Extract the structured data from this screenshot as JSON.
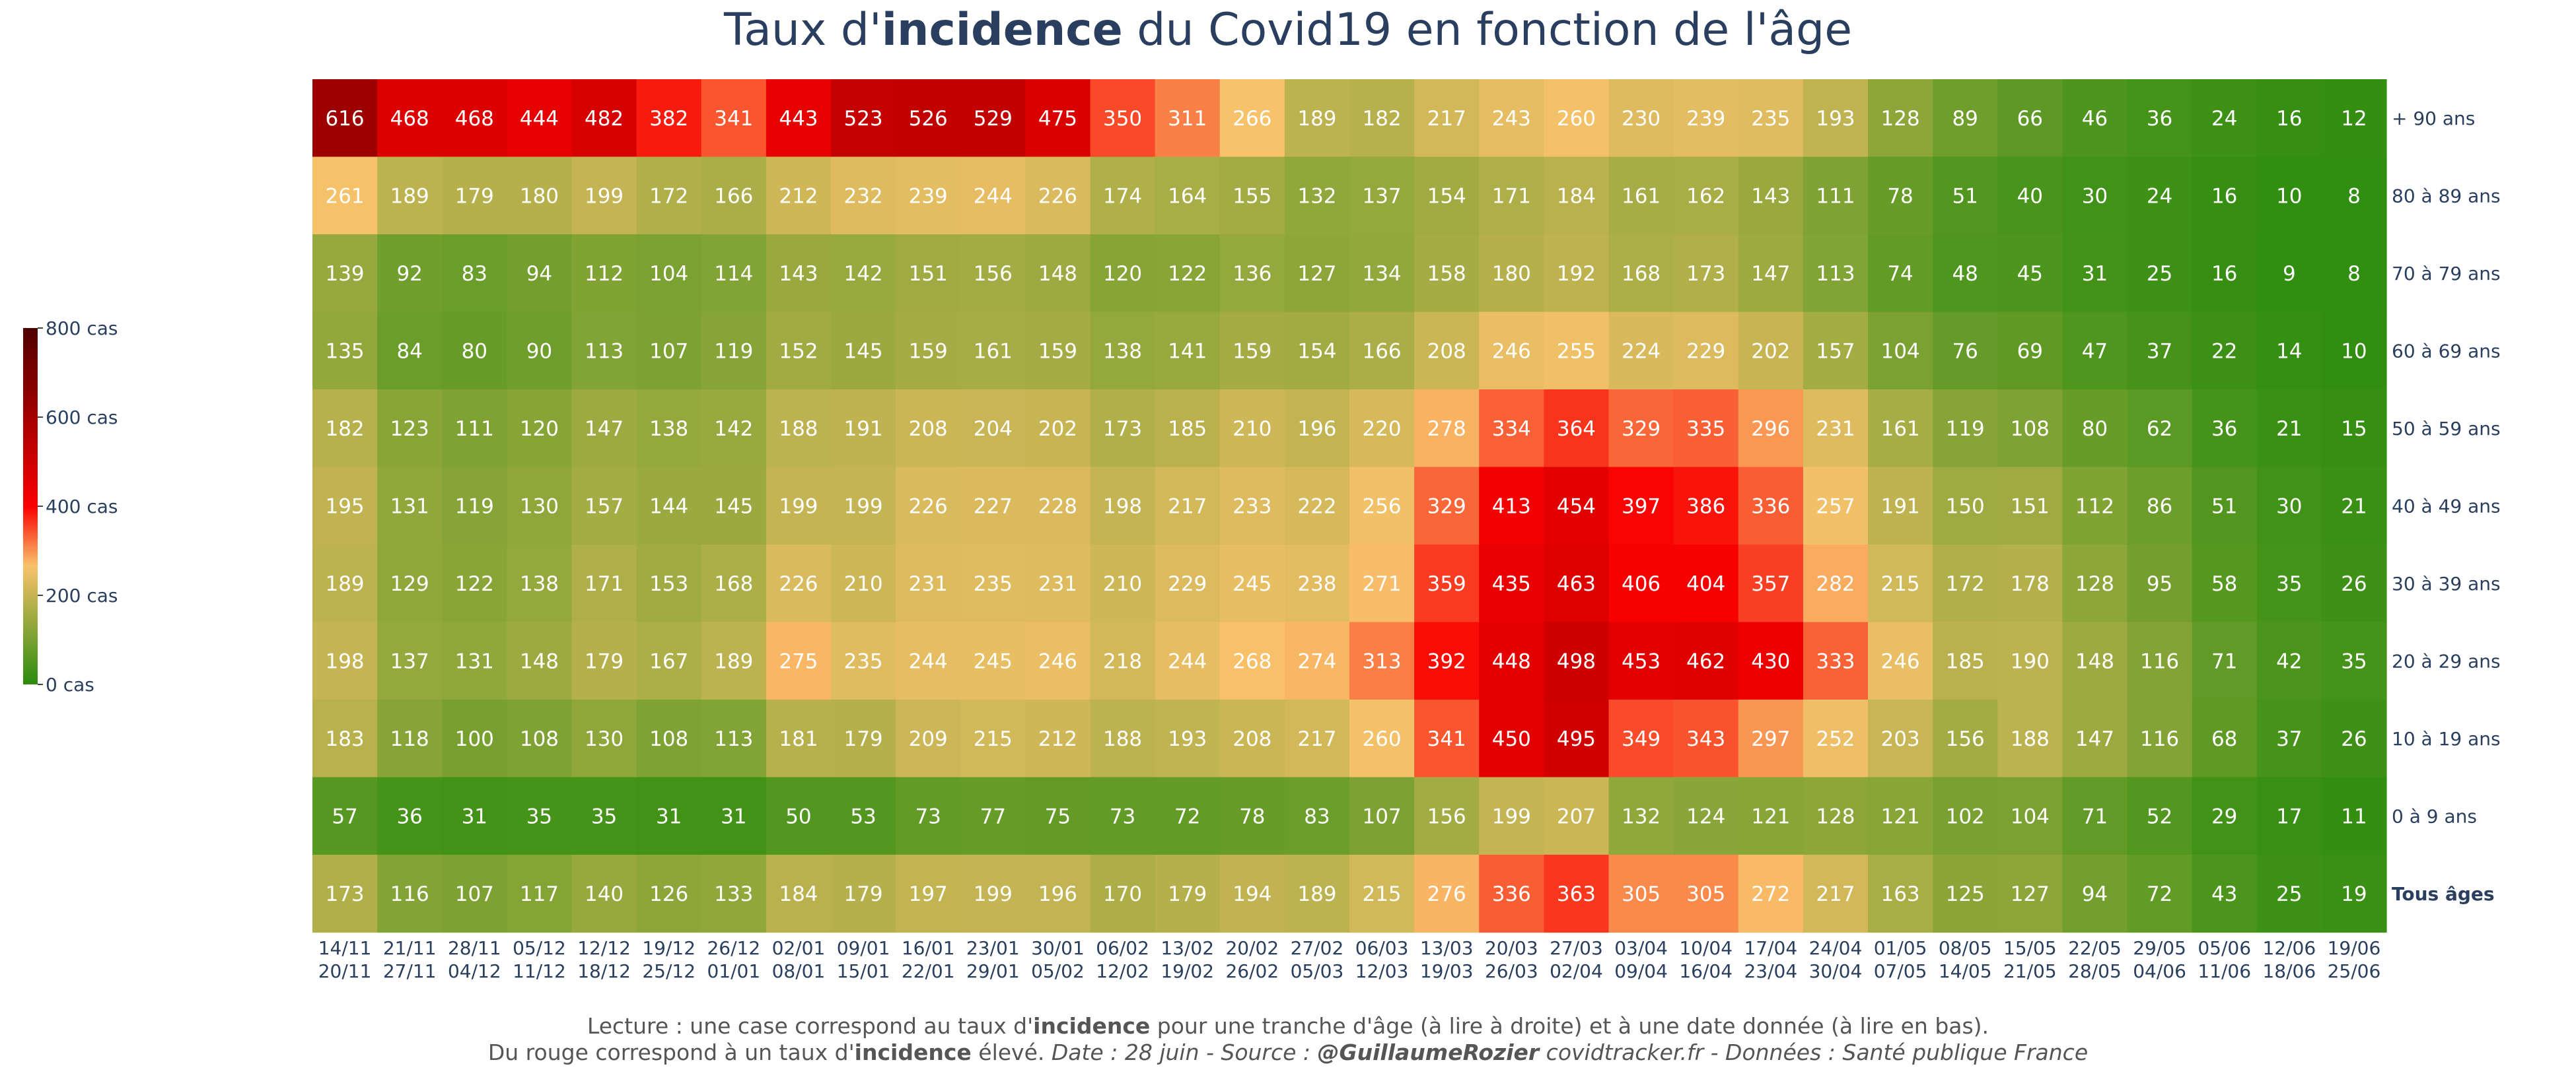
{
  "title": {
    "before": "Taux d'",
    "bold": "incidence",
    "after": " du Covid19 en fonction de l'âge"
  },
  "footer": {
    "line1_a": "Lecture : une case correspond au taux d'",
    "line1_bold": "incidence",
    "line1_b": " pour une tranche d'âge (à lire à droite) et à une date donnée (à lire en bas).",
    "line2_a": "Du rouge correspond à un taux d'",
    "line2_bold": "incidence",
    "line2_b": " élevé.  ",
    "line2_italic_a": "Date : 28 juin - Source : ",
    "line2_italic_bold": "@GuillaumeRozier",
    "line2_italic_b": " covidtracker.fr - Données : Santé publique France"
  },
  "chart_data": {
    "type": "heatmap",
    "colorscale": [
      "#2a8c0d",
      "#f9c26b",
      "#f90000",
      "#4f0000"
    ],
    "colorbar": {
      "ticks": [
        0,
        200,
        400,
        600,
        800
      ],
      "labels": [
        "0 cas",
        "200 cas",
        "400 cas",
        "600 cas",
        "800 cas"
      ],
      "range": [
        0,
        800
      ]
    },
    "x": [
      [
        "14/11",
        "20/11"
      ],
      [
        "21/11",
        "27/11"
      ],
      [
        "28/11",
        "04/12"
      ],
      [
        "05/12",
        "11/12"
      ],
      [
        "12/12",
        "18/12"
      ],
      [
        "19/12",
        "25/12"
      ],
      [
        "26/12",
        "01/01"
      ],
      [
        "02/01",
        "08/01"
      ],
      [
        "09/01",
        "15/01"
      ],
      [
        "16/01",
        "22/01"
      ],
      [
        "23/01",
        "29/01"
      ],
      [
        "30/01",
        "05/02"
      ],
      [
        "06/02",
        "12/02"
      ],
      [
        "13/02",
        "19/02"
      ],
      [
        "20/02",
        "26/02"
      ],
      [
        "27/02",
        "05/03"
      ],
      [
        "06/03",
        "12/03"
      ],
      [
        "13/03",
        "19/03"
      ],
      [
        "20/03",
        "26/03"
      ],
      [
        "27/03",
        "02/04"
      ],
      [
        "03/04",
        "09/04"
      ],
      [
        "10/04",
        "16/04"
      ],
      [
        "17/04",
        "23/04"
      ],
      [
        "24/04",
        "30/04"
      ],
      [
        "01/05",
        "07/05"
      ],
      [
        "08/05",
        "14/05"
      ],
      [
        "15/05",
        "21/05"
      ],
      [
        "22/05",
        "28/05"
      ],
      [
        "29/05",
        "04/06"
      ],
      [
        "05/06",
        "11/06"
      ],
      [
        "12/06",
        "18/06"
      ],
      [
        "19/06",
        "25/06"
      ]
    ],
    "y": [
      "+ 90 ans",
      "80 à 89 ans",
      "70 à 79 ans",
      "60 à 69 ans",
      "50 à 59 ans",
      "40 à 49 ans",
      "30 à 39 ans",
      "20 à 29 ans",
      "10 à 19 ans",
      "0 à 9 ans",
      "Tous âges"
    ],
    "y_bold": [
      false,
      false,
      false,
      false,
      false,
      false,
      false,
      false,
      false,
      false,
      true
    ],
    "z": [
      [
        616,
        468,
        468,
        444,
        482,
        382,
        341,
        443,
        523,
        526,
        529,
        475,
        350,
        311,
        266,
        189,
        182,
        217,
        243,
        260,
        230,
        239,
        235,
        193,
        128,
        89,
        66,
        46,
        36,
        24,
        16,
        12
      ],
      [
        261,
        189,
        179,
        180,
        199,
        172,
        166,
        212,
        232,
        239,
        244,
        226,
        174,
        164,
        155,
        132,
        137,
        154,
        171,
        184,
        161,
        162,
        143,
        111,
        78,
        51,
        40,
        30,
        24,
        16,
        10,
        8
      ],
      [
        139,
        92,
        83,
        94,
        112,
        104,
        114,
        143,
        142,
        151,
        156,
        148,
        120,
        122,
        136,
        127,
        134,
        158,
        180,
        192,
        168,
        173,
        147,
        113,
        74,
        48,
        45,
        31,
        25,
        16,
        9,
        8
      ],
      [
        135,
        84,
        80,
        90,
        113,
        107,
        119,
        152,
        145,
        159,
        161,
        159,
        138,
        141,
        159,
        154,
        166,
        208,
        246,
        255,
        224,
        229,
        202,
        157,
        104,
        76,
        69,
        47,
        37,
        22,
        14,
        10
      ],
      [
        182,
        123,
        111,
        120,
        147,
        138,
        142,
        188,
        191,
        208,
        204,
        202,
        173,
        185,
        210,
        196,
        220,
        278,
        334,
        364,
        329,
        335,
        296,
        231,
        161,
        119,
        108,
        80,
        62,
        36,
        21,
        15
      ],
      [
        195,
        131,
        119,
        130,
        157,
        144,
        145,
        199,
        199,
        226,
        227,
        228,
        198,
        217,
        233,
        222,
        256,
        329,
        413,
        454,
        397,
        386,
        336,
        257,
        191,
        150,
        151,
        112,
        86,
        51,
        30,
        21
      ],
      [
        189,
        129,
        122,
        138,
        171,
        153,
        168,
        226,
        210,
        231,
        235,
        231,
        210,
        229,
        245,
        238,
        271,
        359,
        435,
        463,
        406,
        404,
        357,
        282,
        215,
        172,
        178,
        128,
        95,
        58,
        35,
        26
      ],
      [
        198,
        137,
        131,
        148,
        179,
        167,
        189,
        275,
        235,
        244,
        245,
        246,
        218,
        244,
        268,
        274,
        313,
        392,
        448,
        498,
        453,
        462,
        430,
        333,
        246,
        185,
        190,
        148,
        116,
        71,
        42,
        35
      ],
      [
        183,
        118,
        100,
        108,
        130,
        108,
        113,
        181,
        179,
        209,
        215,
        212,
        188,
        193,
        208,
        217,
        260,
        341,
        450,
        495,
        349,
        343,
        297,
        252,
        203,
        156,
        188,
        147,
        116,
        68,
        37,
        26
      ],
      [
        57,
        36,
        31,
        35,
        35,
        31,
        31,
        50,
        53,
        73,
        77,
        75,
        73,
        72,
        78,
        83,
        107,
        156,
        199,
        207,
        132,
        124,
        121,
        128,
        121,
        102,
        104,
        71,
        52,
        29,
        17,
        11
      ],
      [
        173,
        116,
        107,
        117,
        140,
        126,
        133,
        184,
        179,
        197,
        199,
        196,
        170,
        179,
        194,
        189,
        215,
        276,
        336,
        363,
        305,
        305,
        272,
        217,
        163,
        125,
        127,
        94,
        72,
        43,
        25,
        19
      ]
    ]
  }
}
